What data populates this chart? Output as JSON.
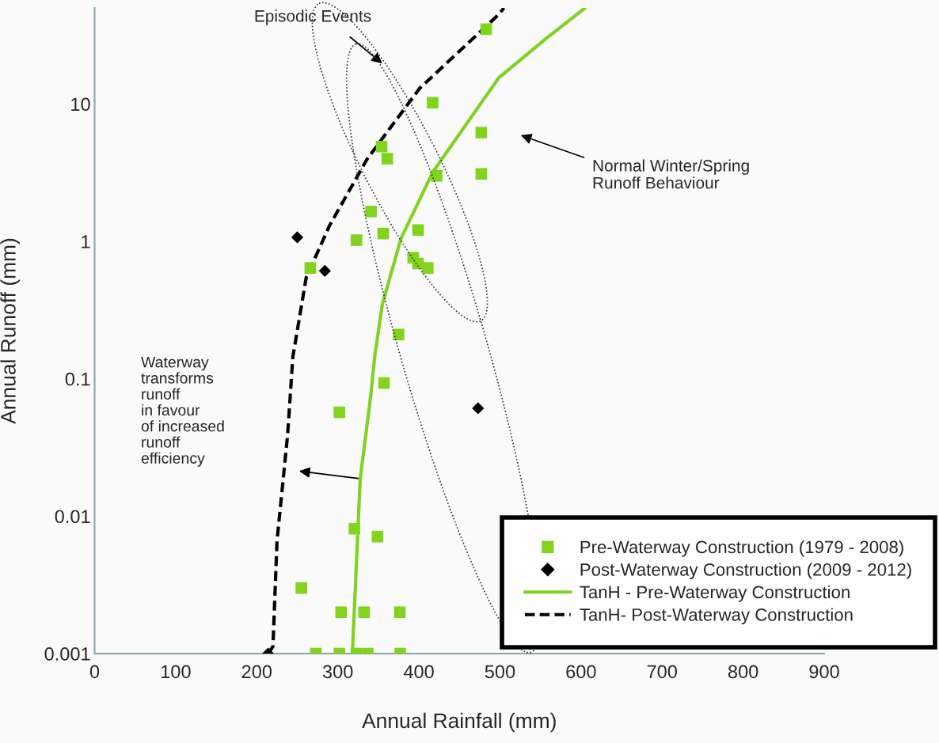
{
  "chart_data": {
    "type": "scatter",
    "xlabel": "Annual Rainfall (mm)",
    "ylabel": "Annual Runoff (mm)",
    "log": "y",
    "xlim": [
      0,
      900
    ],
    "xticks": [
      0,
      100,
      200,
      300,
      400,
      500,
      600,
      700,
      800,
      900
    ],
    "ylim": [
      0.001,
      50
    ],
    "yticks": [
      0.001,
      0.01,
      0.1,
      1,
      10
    ],
    "grid": false,
    "legend": "bottom right",
    "series": [
      {
        "name": "Pre-Waterway Construction (1979 - 2008)",
        "type": "scatter",
        "marker": "square",
        "color": "#80d41c",
        "x": [
          483,
          417,
          477,
          477,
          354,
          361,
          422,
          341,
          399,
          323,
          356,
          393,
          399,
          411,
          266,
          375,
          357,
          302,
          320.5,
          349,
          255,
          304,
          332.5,
          376.5,
          273,
          302,
          323,
          337,
          377
        ],
        "values": [
          35,
          10.2,
          6.2,
          3.1,
          4.9,
          4.0,
          3.0,
          1.65,
          1.21,
          1.02,
          1.14,
          0.76,
          0.69,
          0.64,
          0.64,
          0.21,
          0.093,
          0.057,
          0.0081,
          0.0071,
          0.003,
          0.002,
          0.002,
          0.002,
          0.001,
          0.001,
          0.001,
          0.001,
          0.001
        ]
      },
      {
        "name": "Post-Waterway Construction (2009 - 2012)",
        "type": "scatter",
        "marker": "diamond",
        "color": "#000000",
        "x": [
          250,
          284,
          473,
          214
        ],
        "values": [
          1.07,
          0.61,
          0.061,
          0.001
        ]
      },
      {
        "name": "TanH - Pre-Waterway Construction",
        "type": "line",
        "marker": "none",
        "line_style": "solid",
        "color": "#7ed321",
        "x": [
          318,
          327.6,
          340.6,
          345.5,
          355,
          378,
          417,
          498.5,
          557,
          605
        ],
        "values": [
          0.001,
          0.0186,
          0.075,
          0.145,
          0.35,
          1.05,
          3.18,
          15.5,
          30,
          50
        ]
      },
      {
        "name": "TanH- Post-Waterway Construction",
        "type": "line",
        "marker": "none",
        "line_style": "dashed",
        "color": "#000000",
        "x": [
          214,
          220,
          225,
          238,
          244.6,
          261,
          290,
          336,
          401,
          498.5,
          505
        ],
        "values": [
          0.001,
          0.00113,
          0.0066,
          0.0386,
          0.145,
          0.545,
          1.31,
          3.96,
          13,
          44.8,
          50
        ]
      }
    ],
    "annotations": [
      "Episodic Events",
      "Normal Winter/Spring\nRunoff Behaviour",
      "Waterway\ntransforms\nrunoff\nin favour\nof increased\nrunoff\nefficiency"
    ]
  }
}
